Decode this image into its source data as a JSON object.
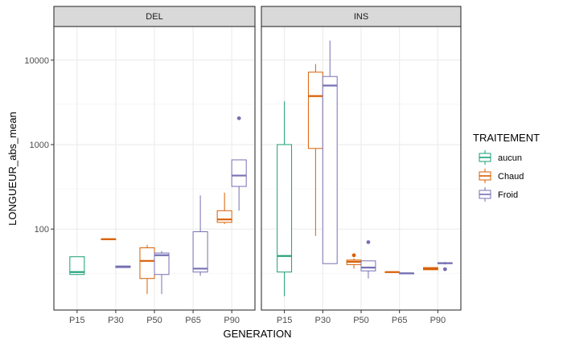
{
  "chart_data": {
    "type": "boxplot",
    "xlabel": "GENERATION",
    "ylabel": "LONGUEUR_abs_mean",
    "yscale": "log10",
    "ylim": [
      11,
      25000
    ],
    "yticks": [
      100,
      1000,
      10000
    ],
    "ytick_labels": [
      "100",
      "1000",
      "10000"
    ],
    "categories": [
      "P15",
      "P30",
      "P50",
      "P65",
      "P90"
    ],
    "panels": [
      {
        "name": "DEL",
        "boxes": [
          {
            "category": "P15",
            "treatment": "aucun",
            "min": 29,
            "q1": 29,
            "median": 31,
            "q3": 47,
            "max": 47,
            "outliers": []
          },
          {
            "category": "P30",
            "treatment": "Chaud",
            "min": 75,
            "q1": 75,
            "median": 76,
            "q3": 76,
            "max": 77,
            "outliers": []
          },
          {
            "category": "P30",
            "treatment": "Froid",
            "min": 35,
            "q1": 35,
            "median": 36,
            "q3": 36.5,
            "max": 37,
            "outliers": []
          },
          {
            "category": "P50",
            "treatment": "Chaud",
            "min": 17,
            "q1": 26,
            "median": 42,
            "q3": 60,
            "max": 65,
            "outliers": []
          },
          {
            "category": "P50",
            "treatment": "Froid",
            "min": 17,
            "q1": 29,
            "median": 49,
            "q3": 52,
            "max": 55,
            "outliers": []
          },
          {
            "category": "P65",
            "treatment": "Froid",
            "min": 28,
            "q1": 31,
            "median": 34,
            "q3": 93,
            "max": 250,
            "outliers": []
          },
          {
            "category": "P90",
            "treatment": "Chaud",
            "min": 115,
            "q1": 120,
            "median": 130,
            "q3": 165,
            "max": 270,
            "outliers": []
          },
          {
            "category": "P90",
            "treatment": "Froid",
            "min": 165,
            "q1": 320,
            "median": 430,
            "q3": 660,
            "max": 660,
            "outliers": [
              2050
            ]
          }
        ]
      },
      {
        "name": "INS",
        "boxes": [
          {
            "category": "P15",
            "treatment": "aucun",
            "min": 16,
            "q1": 31,
            "median": 48,
            "q3": 1000,
            "max": 3250,
            "outliers": []
          },
          {
            "category": "P30",
            "treatment": "Chaud",
            "min": 83,
            "q1": 900,
            "median": 3750,
            "q3": 7200,
            "max": 9000,
            "outliers": []
          },
          {
            "category": "P30",
            "treatment": "Froid",
            "min": 39,
            "q1": 39,
            "median": 5000,
            "q3": 6400,
            "max": 17000,
            "outliers": []
          },
          {
            "category": "P50",
            "treatment": "Chaud",
            "min": 34,
            "q1": 38,
            "median": 41,
            "q3": 43,
            "max": 45,
            "outliers": [
              49
            ]
          },
          {
            "category": "P50",
            "treatment": "Froid",
            "min": 26,
            "q1": 32,
            "median": 35,
            "q3": 42,
            "max": 42,
            "outliers": [
              70
            ]
          },
          {
            "category": "P65",
            "treatment": "Chaud",
            "min": 31,
            "q1": 31,
            "median": 31,
            "q3": 31,
            "max": 31,
            "outliers": []
          },
          {
            "category": "P65",
            "treatment": "Froid",
            "min": 29.5,
            "q1": 29.5,
            "median": 30,
            "q3": 30,
            "max": 30.5,
            "outliers": []
          },
          {
            "category": "P90",
            "treatment": "Chaud",
            "min": 33,
            "q1": 33,
            "median": 34,
            "q3": 35,
            "max": 35,
            "outliers": []
          },
          {
            "category": "P90",
            "treatment": "Froid",
            "min": 38,
            "q1": 39,
            "median": 39.5,
            "q3": 40,
            "max": 41,
            "outliers": [
              33.5
            ]
          }
        ]
      }
    ],
    "legend": {
      "title": "TRAITEMENT",
      "position": "right",
      "entries": [
        {
          "name": "aucun",
          "color": "#1b9e77"
        },
        {
          "name": "Chaud",
          "color": "#d95f02"
        },
        {
          "name": "Froid",
          "color": "#7570b3"
        }
      ]
    },
    "grid": true,
    "panel_background": "#ffffff",
    "strip_background": "#d9d9d9"
  }
}
